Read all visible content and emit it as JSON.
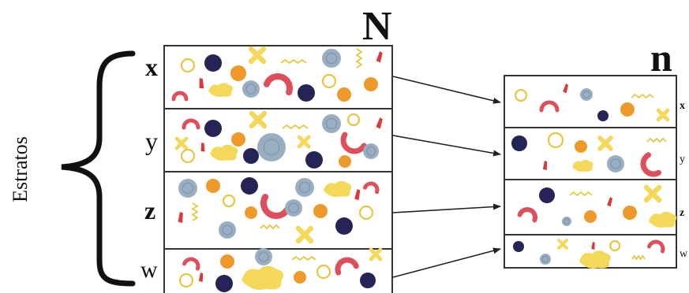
{
  "population_label": "N",
  "sample_label": "n",
  "strata_title": "Estratos",
  "population_strata": [
    {
      "label": "x",
      "bold": true
    },
    {
      "label": "y",
      "bold": false
    },
    {
      "label": "z",
      "bold": true
    },
    {
      "label": "w",
      "bold": false
    }
  ],
  "sample_strata": [
    {
      "label": "x",
      "bold": true
    },
    {
      "label": "y",
      "bold": false
    },
    {
      "label": "z",
      "bold": true
    },
    {
      "label": "w",
      "bold": false
    }
  ],
  "colors": {
    "navy": "#242456",
    "gray": "#9aaec2",
    "orange": "#ee9a2a",
    "yellow": "#f4d85a",
    "red": "#de4f5c",
    "outline": "#333333"
  }
}
